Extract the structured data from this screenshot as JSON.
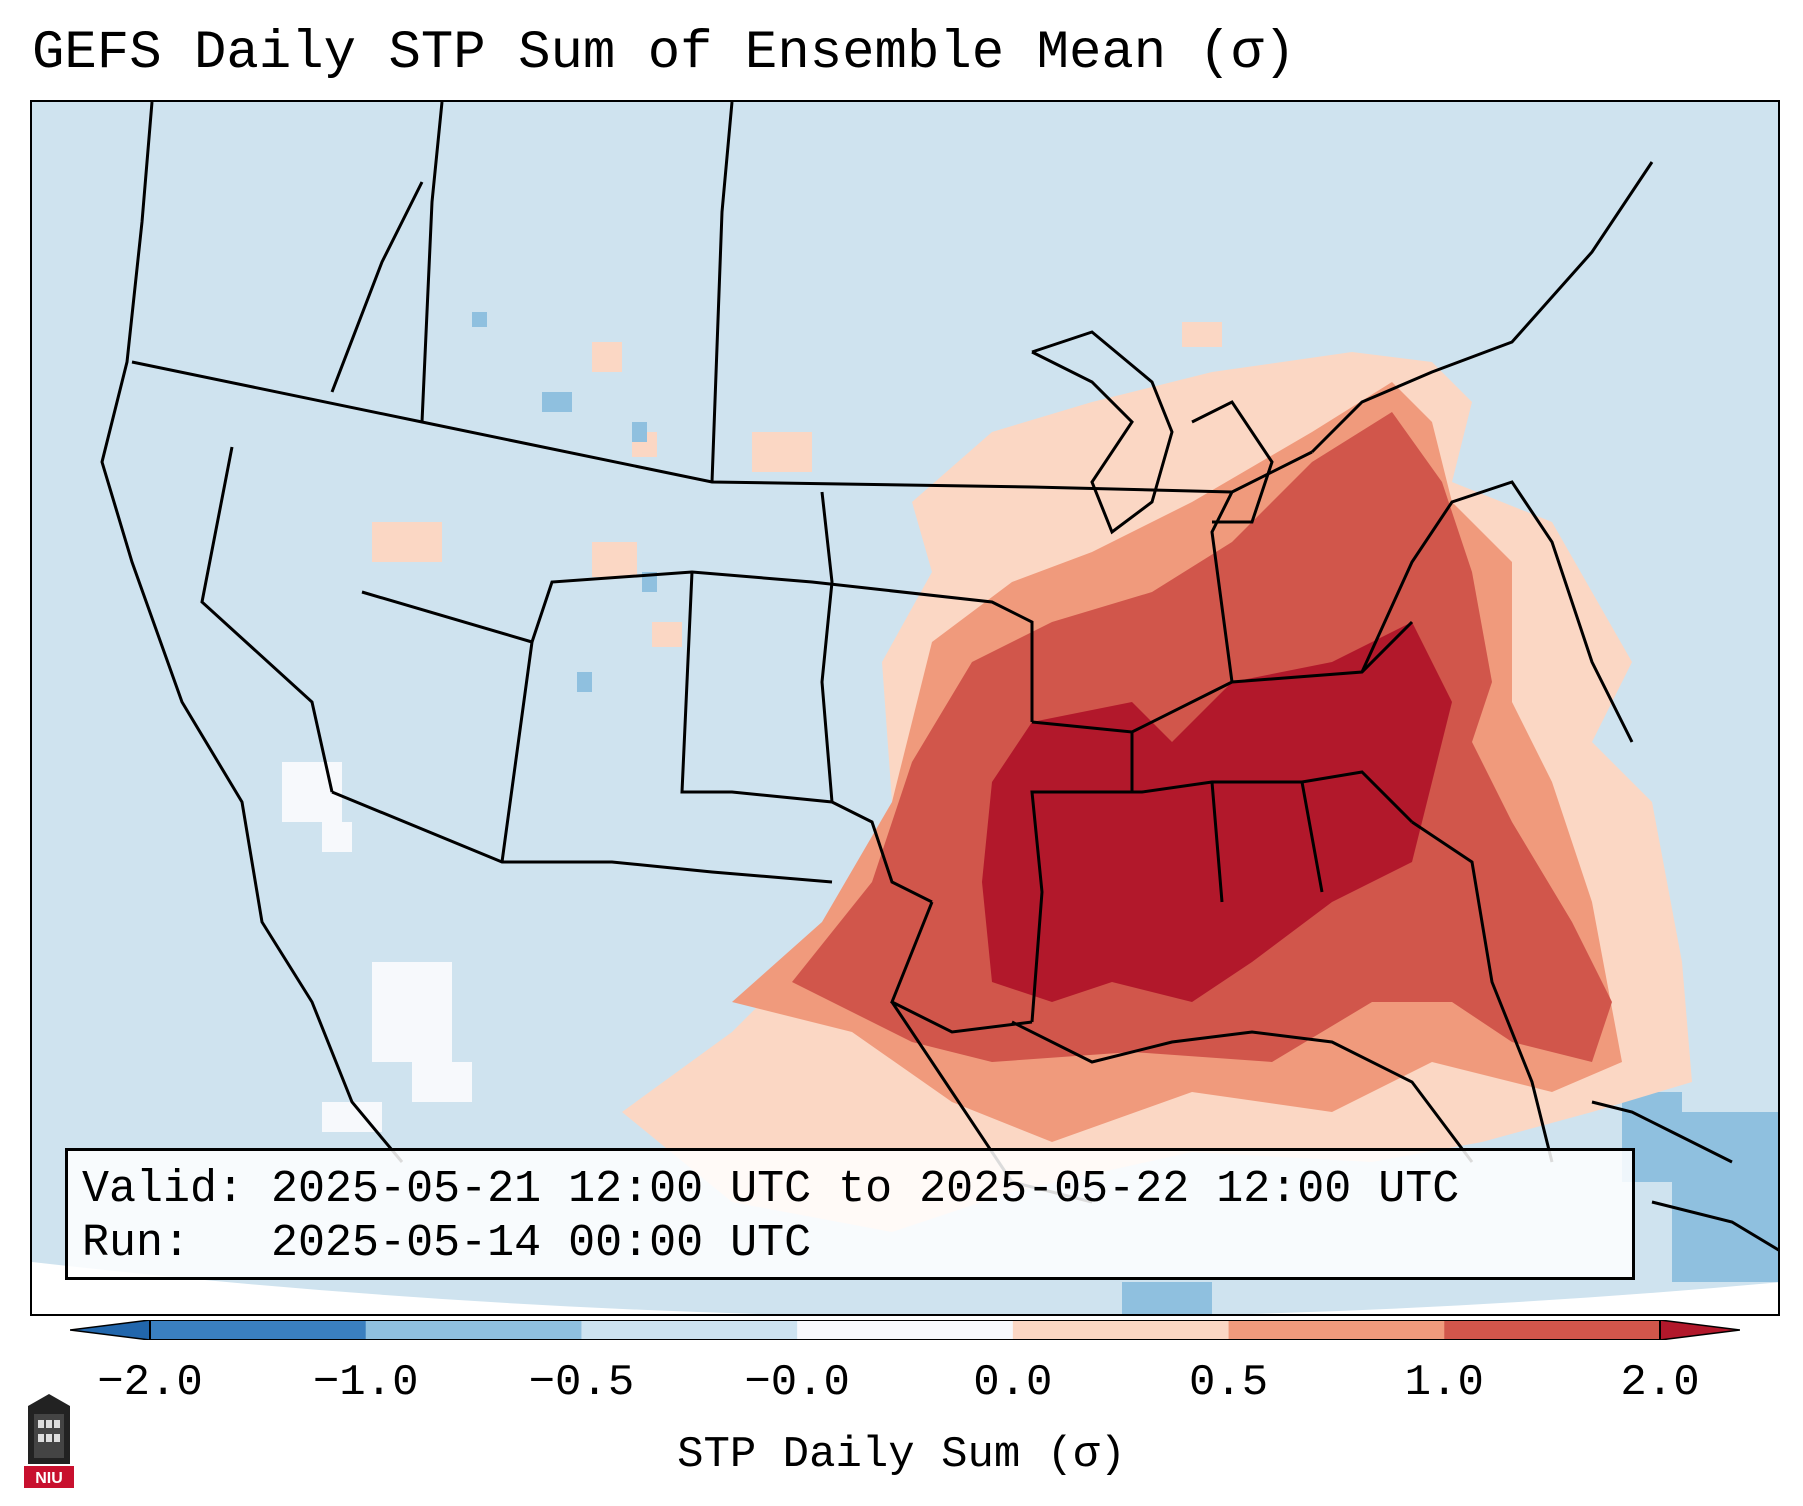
{
  "title": "GEFS Daily STP Sum of Ensemble Mean (σ)",
  "info": {
    "valid_label": "Valid:",
    "valid_value": "2025-05-21 12:00 UTC to 2025-05-22 12:00 UTC",
    "run_label": "Run:",
    "run_value": "2025-05-14 00:00 UTC"
  },
  "colorbar": {
    "label": "STP Daily Sum (σ)",
    "ticks": [
      "−2.0",
      "−1.0",
      "−0.5",
      "−0.0",
      "0.0",
      "0.5",
      "1.0",
      "2.0"
    ],
    "colors": [
      "#3a7fbf",
      "#8fc0df",
      "#cde3f0",
      "#f7f9fc",
      "#fbd7c4",
      "#f09a7c",
      "#d1564b",
      "#b2182b"
    ],
    "extend_low_color": "#2166ac",
    "extend_high_color": "#b2182b"
  },
  "map": {
    "background_color": "#cfe3ef",
    "state_line_color": "#000000",
    "regions": [
      {
        "name": "strongest-core-southeast",
        "level": 2.0
      },
      {
        "name": "elevated-ohio-valley",
        "level": 1.0
      },
      {
        "name": "moderate-east-coast",
        "level": 0.5
      },
      {
        "name": "weak-fringe",
        "level": 0.0
      },
      {
        "name": "slightly-negative-west",
        "level": -0.5
      }
    ]
  },
  "logo": {
    "text": "NIU"
  }
}
